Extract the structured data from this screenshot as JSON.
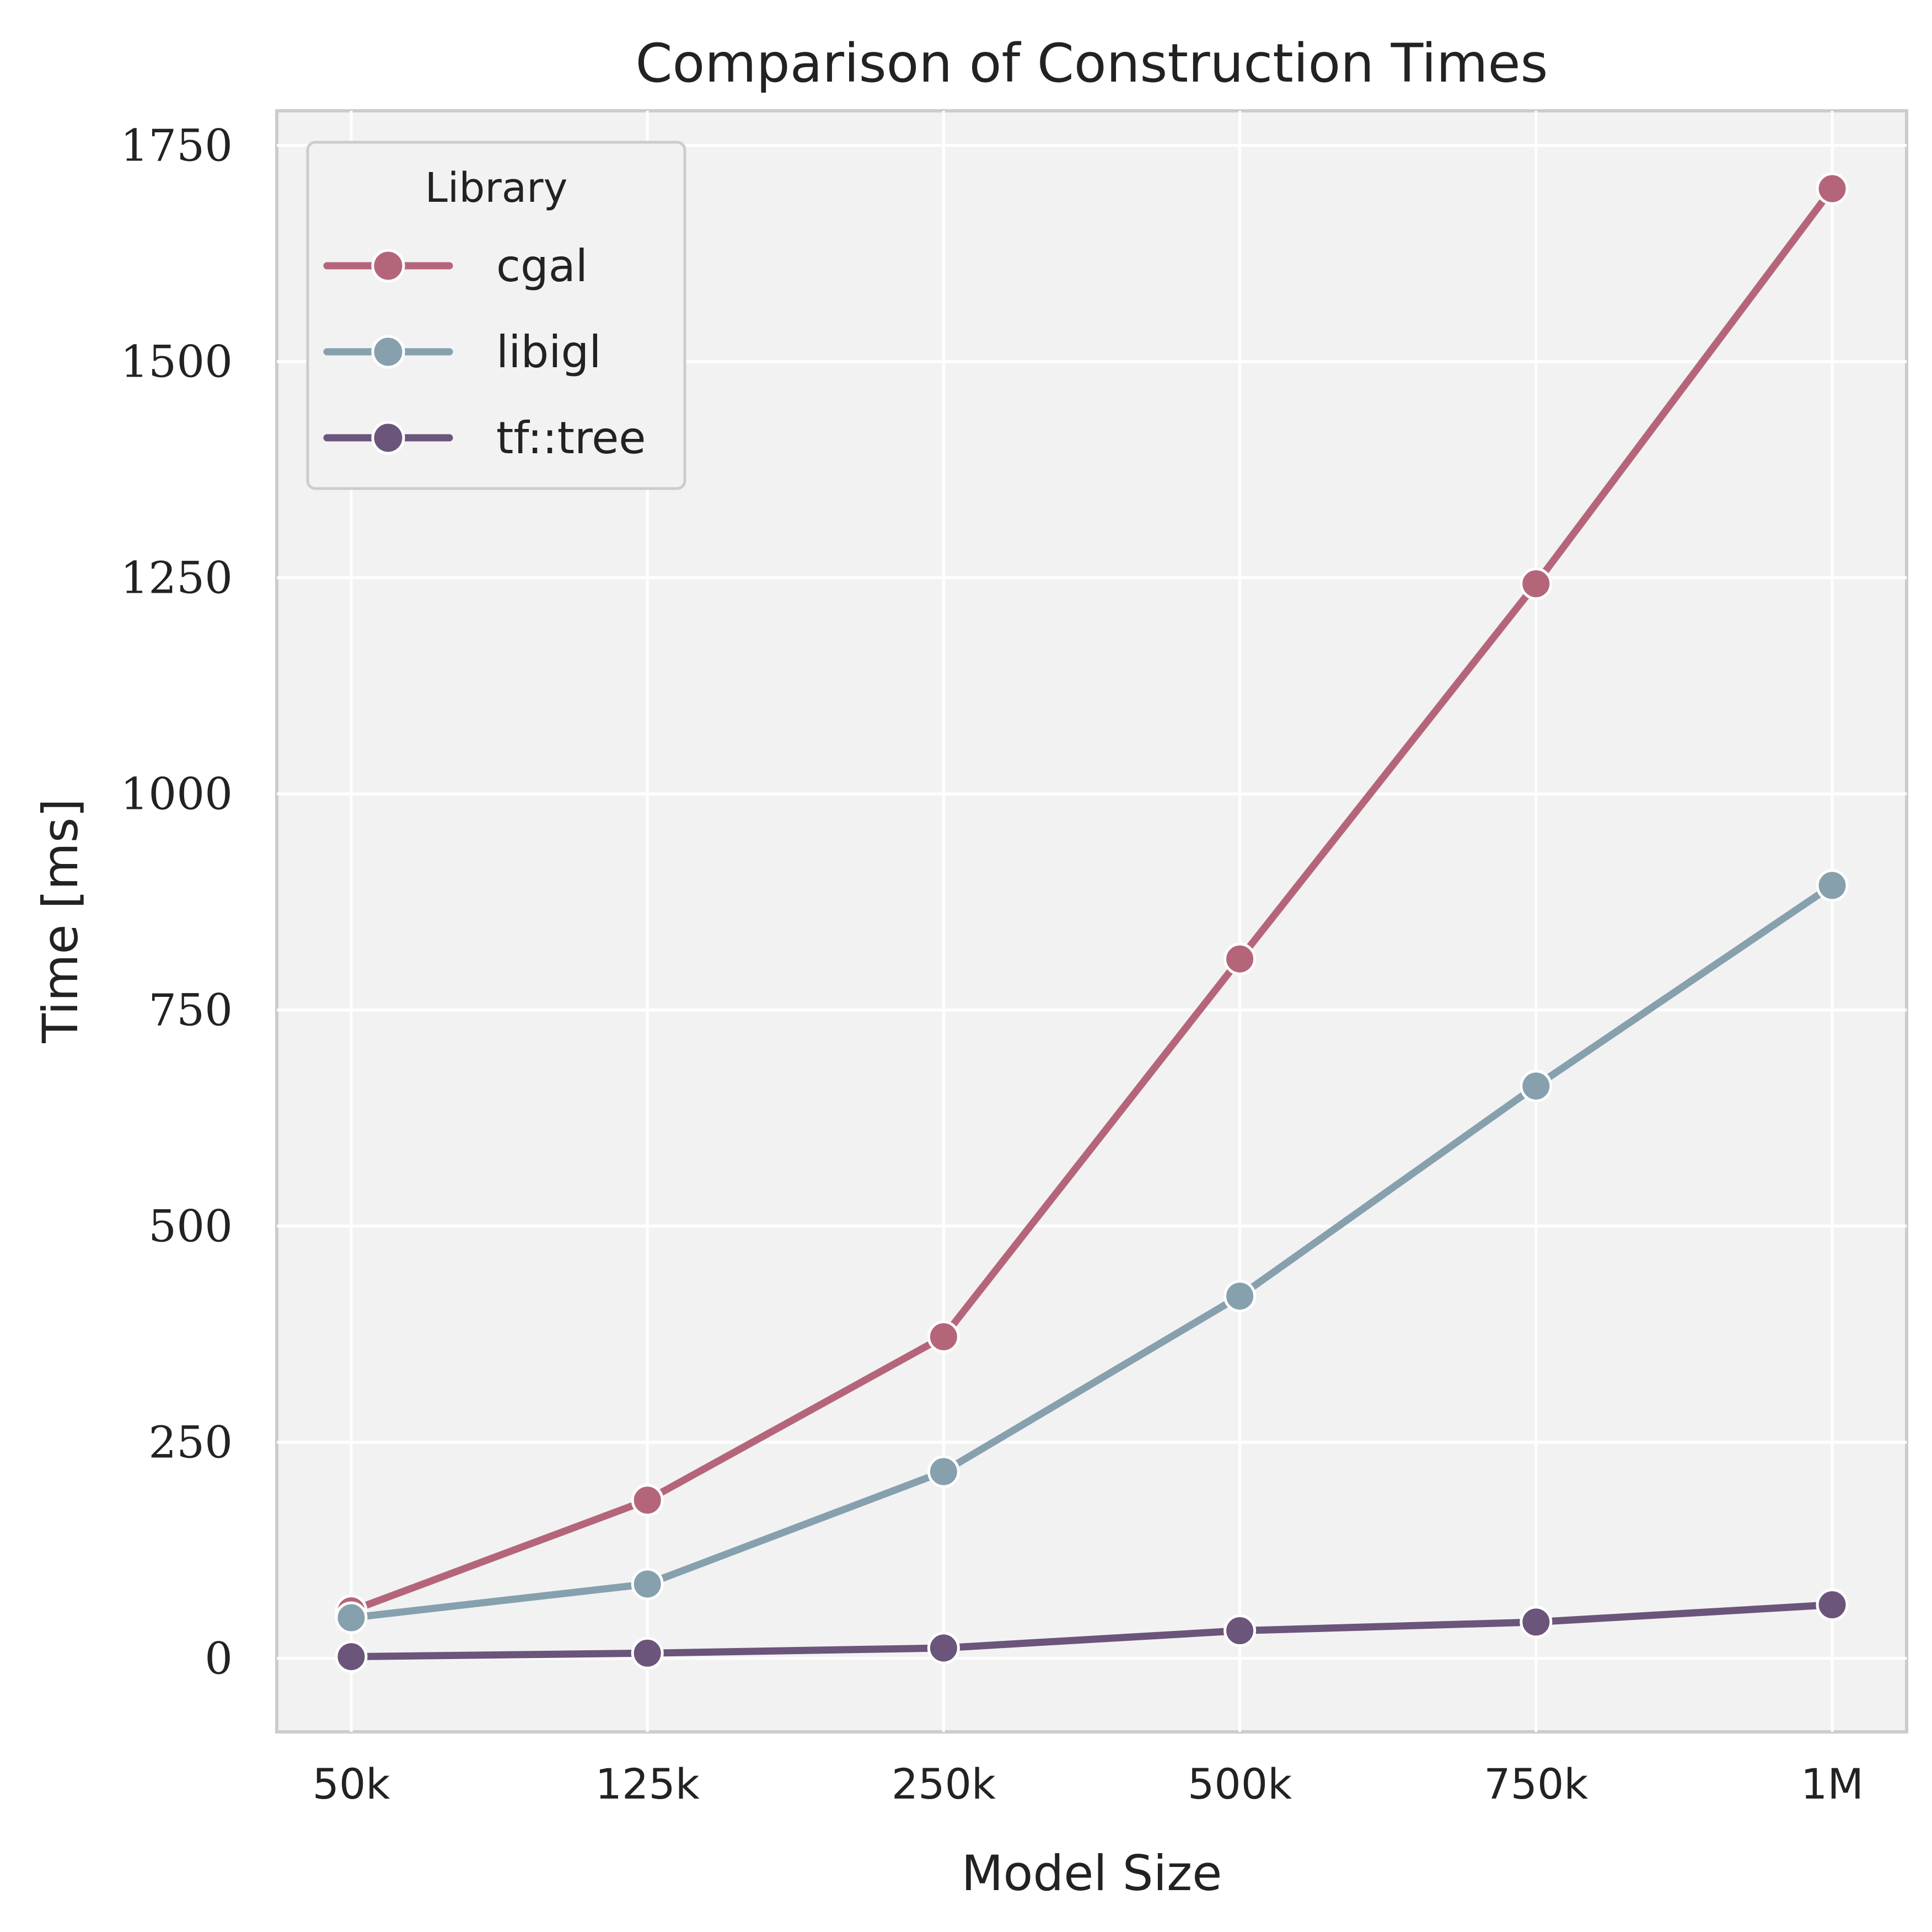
{
  "chart_data": {
    "type": "line",
    "title": "Comparison of Construction Times",
    "xlabel": "Model Size",
    "ylabel": "Time [ms]",
    "categories": [
      "50k",
      "125k",
      "250k",
      "500k",
      "750k",
      "1M"
    ],
    "yticks": [
      "0",
      "250",
      "500",
      "750",
      "1000",
      "1250",
      "1500",
      "1750"
    ],
    "ylim": [
      -85,
      1790
    ],
    "grid": true,
    "legend": {
      "title": "Library",
      "placement": "top-left"
    },
    "series": [
      {
        "name": "cgal",
        "color": "#b5657a",
        "values": [
          55,
          183,
          372,
          809,
          1243,
          1700
        ]
      },
      {
        "name": "libigl",
        "color": "#86a0ae",
        "values": [
          47,
          86,
          216,
          419,
          662,
          894
        ]
      },
      {
        "name": "tf::tree",
        "color": "#6b557a",
        "values": [
          2,
          6,
          12,
          32,
          42,
          62
        ]
      }
    ]
  }
}
